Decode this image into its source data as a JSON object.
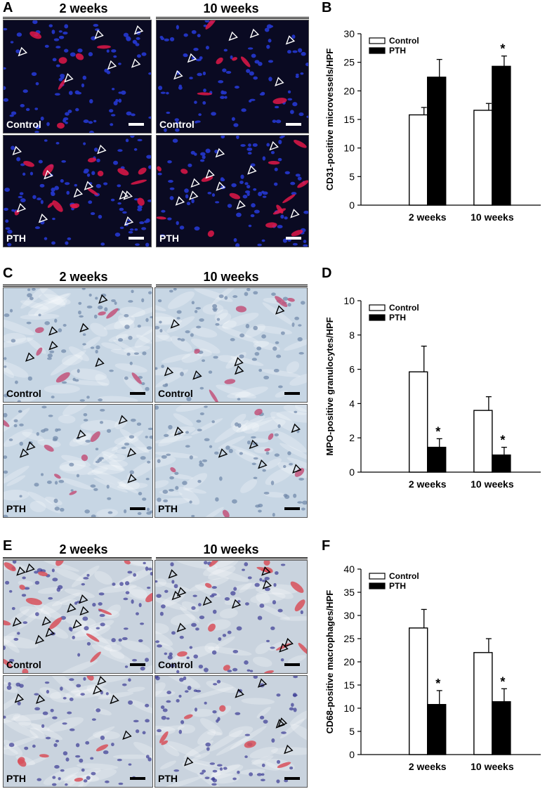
{
  "figure": {
    "panels": {
      "A": {
        "letter": "A",
        "col1": "2 weeks",
        "col2": "10 weeks",
        "row_labels": [
          "Control",
          "PTH"
        ],
        "stain": "fluorescent",
        "colors": {
          "bg": "#0a0a22",
          "nucleus": "#2436c8",
          "marker": "#e01848"
        }
      },
      "C": {
        "letter": "C",
        "col1": "2 weeks",
        "col2": "10 weeks",
        "row_labels": [
          "Control",
          "PTH"
        ],
        "stain": "brightfield",
        "colors": {
          "bg": "#c7d6e4",
          "nucleus": "#6d86a8",
          "marker": "#c2527a"
        }
      },
      "E": {
        "letter": "E",
        "col1": "2 weeks",
        "col2": "10 weeks",
        "row_labels": [
          "Control",
          "PTH"
        ],
        "stain": "brightfield",
        "colors": {
          "bg": "#c9d3de",
          "nucleus": "#3a3a94",
          "marker": "#d8505a"
        }
      },
      "B": {
        "letter": "B"
      },
      "D": {
        "letter": "D"
      },
      "F": {
        "letter": "F"
      }
    }
  },
  "chart_data": [
    {
      "id": "B",
      "type": "bar",
      "categories": [
        "2 weeks",
        "10 weeks"
      ],
      "series": [
        {
          "name": "Control",
          "values": [
            15.8,
            16.6
          ],
          "errors": [
            1.3,
            1.2
          ],
          "color": "#ffffff"
        },
        {
          "name": "PTH",
          "values": [
            22.4,
            24.3
          ],
          "errors": [
            3.1,
            1.8
          ],
          "color": "#000000"
        }
      ],
      "ylabel": "CD31-positive microvessels/HPF",
      "ylim": [
        0,
        30
      ],
      "yticks": [
        "0",
        "5",
        "10",
        "15",
        "20",
        "25",
        "30"
      ],
      "significance": [
        {
          "category": "10 weeks",
          "series": "PTH",
          "text": "*"
        }
      ],
      "legend": "top-left"
    },
    {
      "id": "D",
      "type": "bar",
      "categories": [
        "2 weeks",
        "10 weeks"
      ],
      "series": [
        {
          "name": "Control",
          "values": [
            5.85,
            3.6
          ],
          "errors": [
            1.5,
            0.8
          ],
          "color": "#ffffff"
        },
        {
          "name": "PTH",
          "values": [
            1.45,
            1.0
          ],
          "errors": [
            0.5,
            0.45
          ],
          "color": "#000000"
        }
      ],
      "ylabel": "MPO-positive granulocytes/HPF",
      "ylim": [
        0,
        10
      ],
      "yticks": [
        "0",
        "2",
        "4",
        "6",
        "8",
        "10"
      ],
      "significance": [
        {
          "category": "2 weeks",
          "series": "PTH",
          "text": "*"
        },
        {
          "category": "10 weeks",
          "series": "PTH",
          "text": "*"
        }
      ],
      "legend": "top-left"
    },
    {
      "id": "F",
      "type": "bar",
      "categories": [
        "2 weeks",
        "10 weeks"
      ],
      "series": [
        {
          "name": "Control",
          "values": [
            27.3,
            22.0
          ],
          "errors": [
            4.0,
            3.0
          ],
          "color": "#ffffff"
        },
        {
          "name": "PTH",
          "values": [
            10.8,
            11.4
          ],
          "errors": [
            3.0,
            2.8
          ],
          "color": "#000000"
        }
      ],
      "ylabel": "CD68-positive macrophages/HPF",
      "ylim": [
        0,
        40
      ],
      "yticks": [
        "0",
        "5",
        "10",
        "15",
        "20",
        "25",
        "30",
        "35",
        "40"
      ],
      "significance": [
        {
          "category": "2 weeks",
          "series": "PTH",
          "text": "*"
        },
        {
          "category": "10 weeks",
          "series": "PTH",
          "text": "*"
        }
      ],
      "legend": "top-left"
    }
  ]
}
